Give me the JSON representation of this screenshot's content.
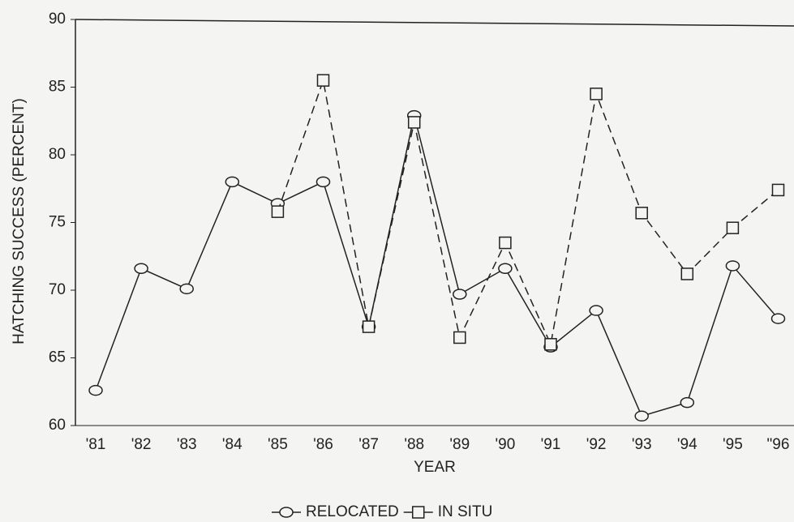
{
  "chart_data": {
    "type": "line",
    "xlabel": "YEAR",
    "ylabel": "HATCHING SUCCESS (PERCENT)",
    "categories": [
      "'81",
      "'82",
      "'83",
      "'84",
      "'85",
      "'86",
      "'87",
      "'88",
      "'89",
      "'90",
      "'91",
      "'92",
      "'93",
      "'94",
      "'95",
      "\"96"
    ],
    "series": [
      {
        "name": "RELOCATED",
        "color": "#222222",
        "marker": "circle",
        "dashed": false,
        "values": [
          62.6,
          71.6,
          70.1,
          78,
          76.4,
          78,
          67.3,
          82.9,
          69.7,
          71.6,
          65.8,
          68.5,
          60.7,
          61.7,
          71.8,
          67.9
        ]
      },
      {
        "name": "IN SITU",
        "color": "#222222",
        "marker": "square",
        "dashed": true,
        "values": [
          null,
          null,
          null,
          null,
          75.8,
          85.5,
          67.3,
          82.4,
          66.5,
          73.5,
          66.0,
          84.5,
          75.7,
          71.2,
          74.6,
          77.4
        ]
      }
    ],
    "ylim": [
      60,
      90
    ],
    "yticks": [
      60,
      65,
      70,
      75,
      80,
      85,
      90
    ],
    "grid": false
  }
}
